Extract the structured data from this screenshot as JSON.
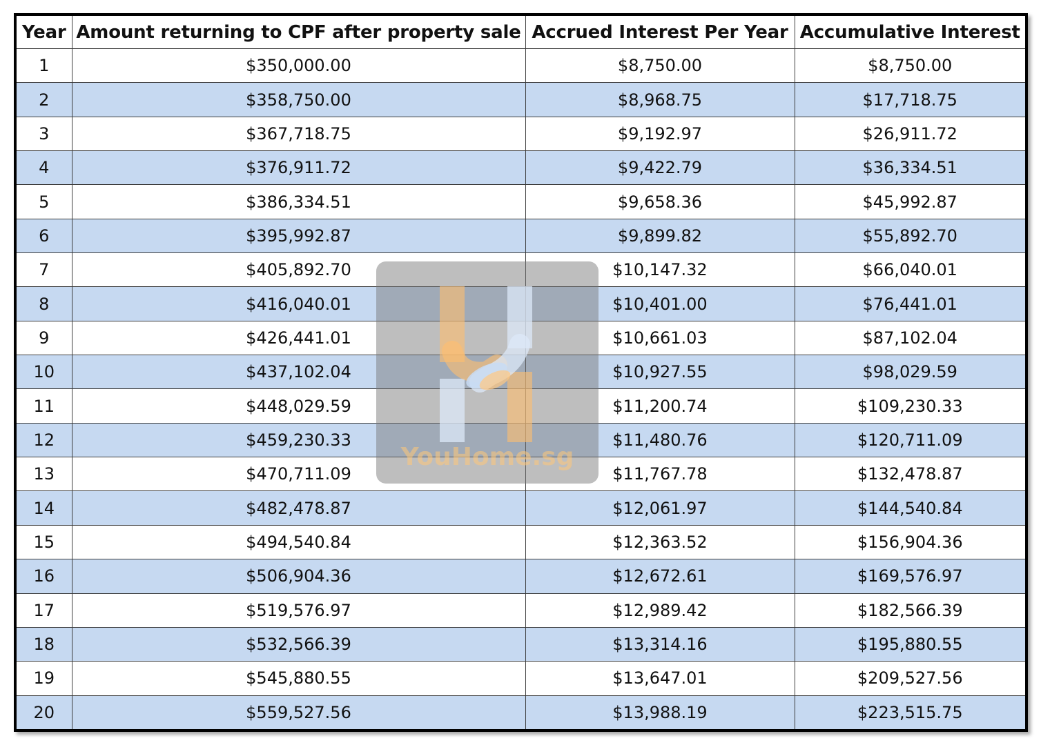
{
  "table": {
    "headers": [
      "Year",
      "Amount returning to CPF after property sale",
      "Accrued Interest Per Year",
      "Accumulative Interest"
    ],
    "rows": [
      [
        "1",
        "$350,000.00",
        "$8,750.00",
        "$8,750.00"
      ],
      [
        "2",
        "$358,750.00",
        "$8,968.75",
        "$17,718.75"
      ],
      [
        "3",
        "$367,718.75",
        "$9,192.97",
        "$26,911.72"
      ],
      [
        "4",
        "$376,911.72",
        "$9,422.79",
        "$36,334.51"
      ],
      [
        "5",
        "$386,334.51",
        "$9,658.36",
        "$45,992.87"
      ],
      [
        "6",
        "$395,992.87",
        "$9,899.82",
        "$55,892.70"
      ],
      [
        "7",
        "$405,892.70",
        "$10,147.32",
        "$66,040.01"
      ],
      [
        "8",
        "$416,040.01",
        "$10,401.00",
        "$76,441.01"
      ],
      [
        "9",
        "$426,441.01",
        "$10,661.03",
        "$87,102.04"
      ],
      [
        "10",
        "$437,102.04",
        "$10,927.55",
        "$98,029.59"
      ],
      [
        "11",
        "$448,029.59",
        "$11,200.74",
        "$109,230.33"
      ],
      [
        "12",
        "$459,230.33",
        "$11,480.76",
        "$120,711.09"
      ],
      [
        "13",
        "$470,711.09",
        "$11,767.78",
        "$132,478.87"
      ],
      [
        "14",
        "$482,478.87",
        "$12,061.97",
        "$144,540.84"
      ],
      [
        "15",
        "$494,540.84",
        "$12,363.52",
        "$156,904.36"
      ],
      [
        "16",
        "$506,904.36",
        "$12,672.61",
        "$169,576.97"
      ],
      [
        "17",
        "$519,576.97",
        "$12,989.42",
        "$182,566.39"
      ],
      [
        "18",
        "$532,566.39",
        "$13,314.16",
        "$195,880.55"
      ],
      [
        "19",
        "$545,880.55",
        "$13,647.01",
        "$209,527.56"
      ],
      [
        "20",
        "$559,527.56",
        "$13,988.19",
        "$223,515.75"
      ]
    ]
  },
  "watermark": {
    "text": "YouHome.sg",
    "icon": "handshake-logo-icon"
  },
  "colors": {
    "header_bg": "#ffffff",
    "row_alt_bg": "#c6d9f1",
    "row_bg": "#ffffff",
    "border": "#3a3a3a",
    "frame_border": "#000000"
  }
}
